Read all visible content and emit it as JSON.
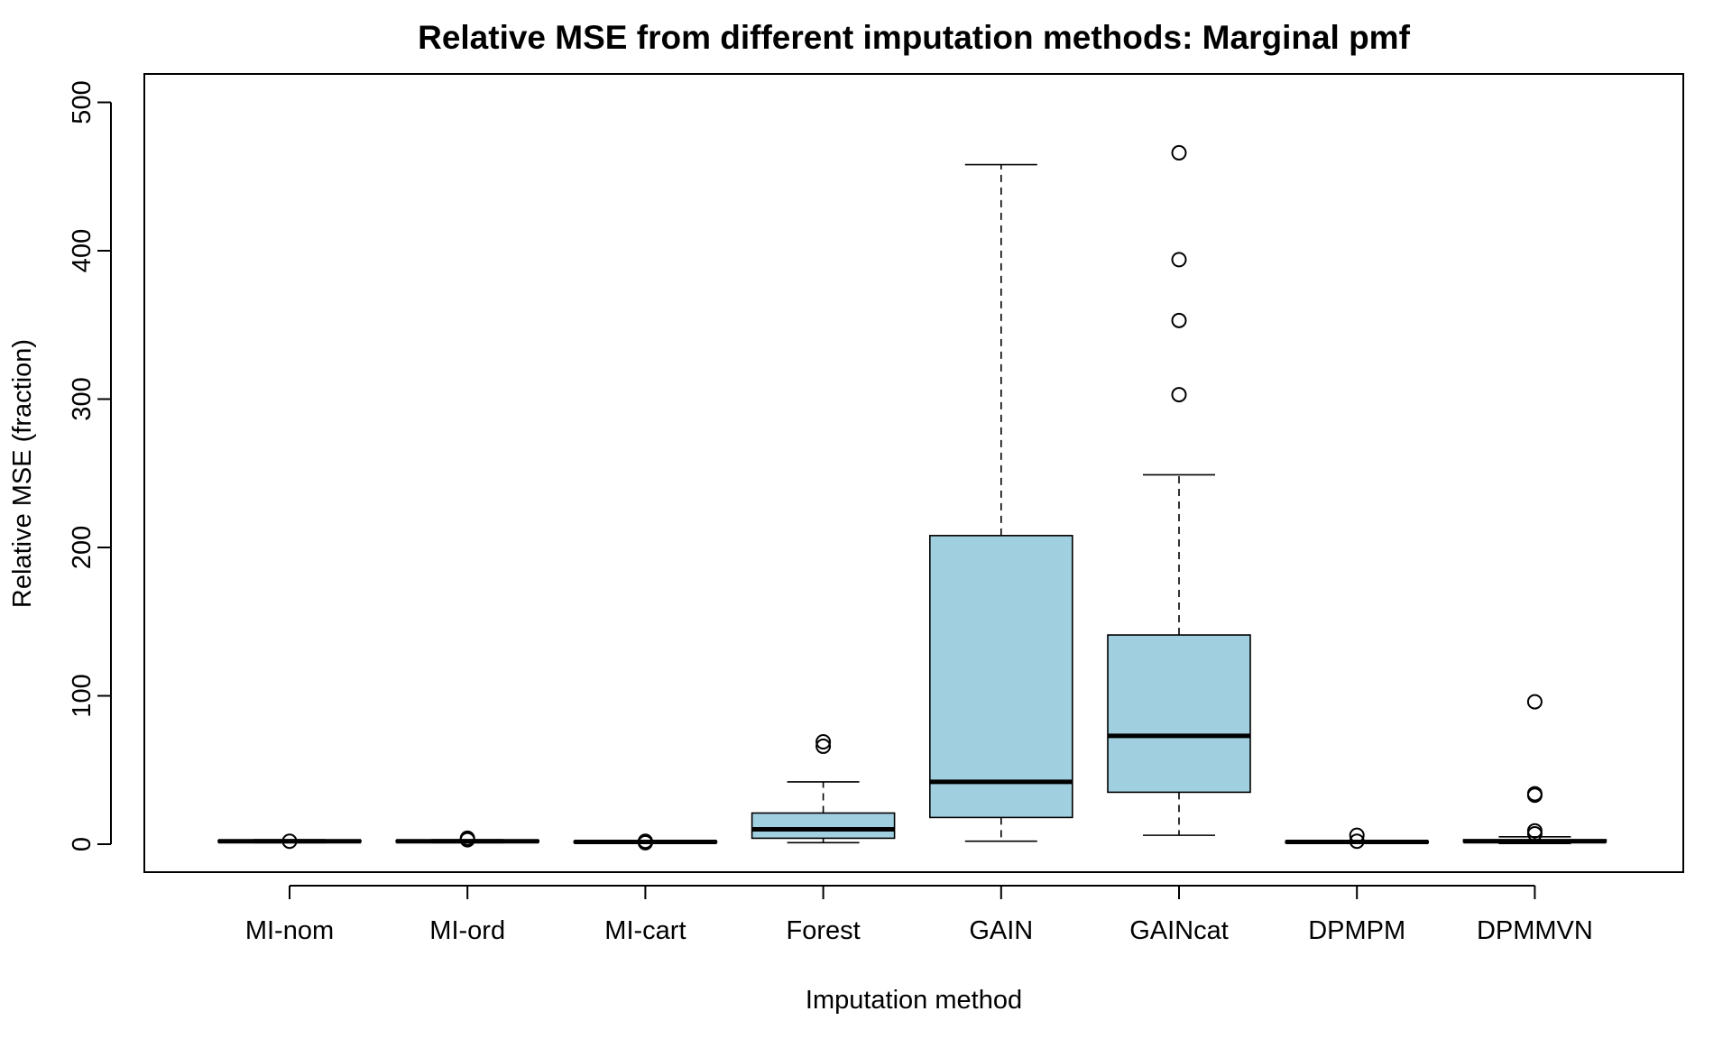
{
  "chart_data": {
    "type": "boxplot",
    "title": "Relative MSE from different imputation methods: Marginal pmf",
    "xlabel": "Imputation method",
    "ylabel": "Relative MSE (fraction)",
    "ylim": [
      -20,
      520
    ],
    "yticks": [
      0,
      100,
      200,
      300,
      400,
      500
    ],
    "grid": false,
    "box_fill_color": "#a0cfe0",
    "categories": [
      "MI-nom",
      "MI-ord",
      "MI-cart",
      "Forest",
      "GAIN",
      "GAINcat",
      "DPMPM",
      "DPMMVN"
    ],
    "boxes": [
      {
        "category": "MI-nom",
        "whisker_low": 1,
        "q1": 1.5,
        "median": 2,
        "q3": 2.5,
        "whisker_high": 3,
        "outliers": [
          2
        ]
      },
      {
        "category": "MI-ord",
        "whisker_low": 1,
        "q1": 1.5,
        "median": 2,
        "q3": 2.5,
        "whisker_high": 3,
        "outliers": [
          3,
          4
        ]
      },
      {
        "category": "MI-cart",
        "whisker_low": 0.5,
        "q1": 1,
        "median": 1.5,
        "q3": 2,
        "whisker_high": 2.5,
        "outliers": [
          1,
          2
        ]
      },
      {
        "category": "Forest",
        "whisker_low": 1,
        "q1": 4,
        "median": 10,
        "q3": 21,
        "whisker_high": 42,
        "outliers": [
          66,
          69
        ]
      },
      {
        "category": "GAIN",
        "whisker_low": 2,
        "q1": 18,
        "median": 42,
        "q3": 208,
        "whisker_high": 458,
        "outliers": []
      },
      {
        "category": "GAINcat",
        "whisker_low": 6,
        "q1": 35,
        "median": 73,
        "q3": 141,
        "whisker_high": 249,
        "outliers": [
          303,
          353,
          394,
          466
        ]
      },
      {
        "category": "DPMPM",
        "whisker_low": 0.5,
        "q1": 1,
        "median": 1.5,
        "q3": 2,
        "whisker_high": 2.5,
        "outliers": [
          2,
          6
        ]
      },
      {
        "category": "DPMMVN",
        "whisker_low": 0.5,
        "q1": 1.5,
        "median": 2,
        "q3": 3,
        "whisker_high": 5,
        "outliers": [
          7,
          9,
          33,
          34,
          96
        ]
      }
    ]
  }
}
